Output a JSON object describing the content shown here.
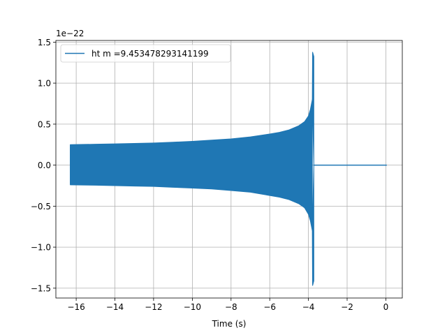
{
  "chart_data": {
    "type": "line",
    "xlabel": "Time (s)",
    "ylabel": "",
    "y_offset_label": "1e−22",
    "xlim": [
      -17.05,
      0.85
    ],
    "ylim": [
      -1.62,
      1.52
    ],
    "xticks": [
      -16,
      -14,
      -12,
      -10,
      -8,
      -6,
      -4,
      -2,
      0
    ],
    "xtick_labels": [
      "−16",
      "−14",
      "−12",
      "−10",
      "−8",
      "−6",
      "−4",
      "−2",
      "0"
    ],
    "yticks": [
      -1.5,
      -1.0,
      -0.5,
      0.0,
      0.5,
      1.0,
      1.5
    ],
    "ytick_labels": [
      "−1.5",
      "−1.0",
      "−0.5",
      "0.0",
      "0.5",
      "1.0",
      "1.5"
    ],
    "grid": true,
    "legend_position": "upper-left",
    "series": [
      {
        "name": "ht m =9.453478293141199",
        "color": "#1f77b4",
        "envelope": {
          "t": [
            -16.3,
            -15,
            -14,
            -13,
            -12,
            -11,
            -10,
            -9,
            -8,
            -7,
            -6,
            -5.5,
            -5,
            -4.5,
            -4.2,
            -4.0,
            -3.9,
            -3.8
          ],
          "upper": [
            0.25,
            0.255,
            0.26,
            0.265,
            0.27,
            0.28,
            0.29,
            0.305,
            0.32,
            0.345,
            0.38,
            0.4,
            0.43,
            0.48,
            0.53,
            0.6,
            0.68,
            0.8
          ],
          "lower": [
            -0.24,
            -0.245,
            -0.25,
            -0.255,
            -0.26,
            -0.27,
            -0.28,
            -0.29,
            -0.31,
            -0.33,
            -0.37,
            -0.39,
            -0.42,
            -0.47,
            -0.52,
            -0.6,
            -0.68,
            -0.8
          ]
        },
        "merger_time": -3.75,
        "peak_max": 1.38,
        "peak_min": -1.47,
        "end_time": 0.05
      }
    ]
  }
}
